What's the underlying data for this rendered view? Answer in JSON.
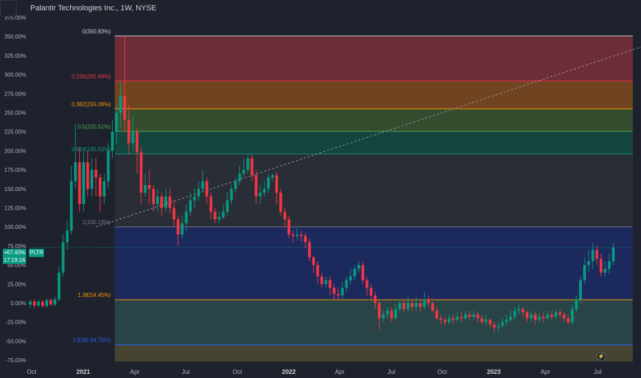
{
  "header": {
    "title": "Palantir Technologies Inc., 1W, NYSE"
  },
  "y_axis": {
    "ticks": [
      "375.00%",
      "350.00%",
      "325.00%",
      "300.00%",
      "275.00%",
      "250.00%",
      "225.00%",
      "200.00%",
      "175.00%",
      "150.00%",
      "125.00%",
      "100.00%",
      "75.00%",
      "50.00%",
      "25.00%",
      "0.00%",
      "-25.00%",
      "-50.00%",
      "-75.00%"
    ]
  },
  "x_axis": {
    "ticks": [
      "Oct",
      "2021",
      "Apr",
      "Jul",
      "Oct",
      "2022",
      "Apr",
      "Jul",
      "Oct",
      "2023",
      "Apr",
      "Jul"
    ]
  },
  "price_label": {
    "change": "+67.40%",
    "countdown": "17:19:16",
    "symbol": "PLTR"
  },
  "colors": {
    "up": "#089981",
    "down": "#f23645",
    "background": "#1e222d",
    "fib_0": "#d1d4dc",
    "fib_0236": "#f23645",
    "fib_0382": "#ff9800",
    "fib_05": "#4caf50",
    "fib_0618": "#089981",
    "fib_1": "#787b86",
    "fib_1382": "#ff9800",
    "fib_1618": "#2962ff"
  },
  "fib_levels": [
    {
      "ratio": "0",
      "label": "0(350.83%)",
      "value": 350.83,
      "color": "#d1d4dc",
      "fill": "#7a2f3c"
    },
    {
      "ratio": "0.236",
      "label": "0.236(291.68%)",
      "value": 291.68,
      "color": "#f23645",
      "fill": "#7f4a1e"
    },
    {
      "ratio": "0.382",
      "label": "0.382(255.09%)",
      "value": 255.09,
      "color": "#ff9800",
      "fill": "#3a5330"
    },
    {
      "ratio": "0.5",
      "label": "0.5(225.51%)",
      "value": 225.51,
      "color": "#4caf50",
      "fill": "#134a42"
    },
    {
      "ratio": "0.618",
      "label": "0.618(195.93%)",
      "value": 195.93,
      "color": "#089981",
      "fill": "#2b3038"
    },
    {
      "ratio": "1",
      "label": "1(100.19%)",
      "value": 100.19,
      "color": "#787b86",
      "fill": "#1c2a66"
    },
    {
      "ratio": "1.382",
      "label": "1.382(4.45%)",
      "value": 4.45,
      "color": "#ff9800",
      "fill": "#2c4a4b"
    },
    {
      "ratio": "1.618",
      "label": "1.618(-54.70%)",
      "value": -54.7,
      "color": "#2962ff",
      "fill": "#4e4a32"
    }
  ],
  "chart_data": {
    "type": "candlestick",
    "title": "Palantir Technologies Inc., 1W, NYSE",
    "y_unit": "% change",
    "ylim": [
      -80,
      380
    ],
    "x_ticks": [
      "Oct",
      "2021",
      "Apr",
      "Jul",
      "Oct",
      "2022",
      "Apr",
      "Jul",
      "Oct",
      "2023",
      "Apr",
      "Jul"
    ],
    "trend_line": {
      "from": {
        "week": 16,
        "value": 100
      },
      "to": {
        "week": 157,
        "value": 351
      }
    },
    "candles": [
      [
        -2,
        2,
        4,
        -6
      ],
      [
        2,
        -3,
        5,
        -7
      ],
      [
        -3,
        2,
        4,
        -5
      ],
      [
        2,
        -4,
        4,
        -6
      ],
      [
        -4,
        4,
        6,
        -6
      ],
      [
        4,
        -2,
        6,
        -4
      ],
      [
        -2,
        5,
        8,
        -4
      ],
      [
        5,
        40,
        48,
        2
      ],
      [
        40,
        80,
        90,
        35
      ],
      [
        80,
        95,
        108,
        70
      ],
      [
        95,
        160,
        180,
        90
      ],
      [
        160,
        185,
        235,
        150
      ],
      [
        185,
        130,
        205,
        120
      ],
      [
        130,
        185,
        200,
        120
      ],
      [
        185,
        150,
        200,
        140
      ],
      [
        150,
        175,
        190,
        140
      ],
      [
        175,
        165,
        190,
        140
      ],
      [
        165,
        140,
        170,
        120
      ],
      [
        140,
        160,
        170,
        130
      ],
      [
        160,
        200,
        210,
        150
      ],
      [
        200,
        225,
        240,
        190
      ],
      [
        225,
        250,
        260,
        210
      ],
      [
        250,
        272,
        290,
        230
      ],
      [
        272,
        240,
        350,
        225
      ],
      [
        240,
        210,
        260,
        195
      ],
      [
        210,
        225,
        245,
        200
      ],
      [
        225,
        198,
        230,
        170
      ],
      [
        198,
        145,
        205,
        130
      ],
      [
        145,
        155,
        170,
        140
      ],
      [
        155,
        150,
        175,
        130
      ],
      [
        150,
        130,
        155,
        120
      ],
      [
        130,
        140,
        150,
        120
      ],
      [
        140,
        125,
        145,
        115
      ],
      [
        125,
        140,
        150,
        120
      ],
      [
        140,
        125,
        150,
        118
      ],
      [
        125,
        110,
        135,
        100
      ],
      [
        110,
        90,
        115,
        75
      ],
      [
        90,
        105,
        115,
        85
      ],
      [
        105,
        120,
        130,
        95
      ],
      [
        120,
        135,
        145,
        115
      ],
      [
        135,
        140,
        150,
        125
      ],
      [
        140,
        150,
        160,
        135
      ],
      [
        150,
        160,
        175,
        145
      ],
      [
        160,
        140,
        165,
        130
      ],
      [
        140,
        120,
        145,
        110
      ],
      [
        120,
        110,
        125,
        105
      ],
      [
        110,
        113,
        120,
        105
      ],
      [
        113,
        120,
        130,
        110
      ],
      [
        120,
        135,
        145,
        115
      ],
      [
        135,
        150,
        155,
        130
      ],
      [
        150,
        160,
        165,
        145
      ],
      [
        160,
        170,
        180,
        155
      ],
      [
        170,
        175,
        190,
        165
      ],
      [
        175,
        190,
        195,
        170
      ],
      [
        190,
        168,
        195,
        160
      ],
      [
        168,
        140,
        175,
        130
      ],
      [
        140,
        145,
        155,
        130
      ],
      [
        145,
        150,
        160,
        140
      ],
      [
        150,
        165,
        170,
        145
      ],
      [
        165,
        168,
        170,
        160
      ],
      [
        168,
        145,
        172,
        130
      ],
      [
        145,
        120,
        150,
        115
      ],
      [
        120,
        110,
        125,
        100
      ],
      [
        110,
        90,
        115,
        85
      ],
      [
        90,
        88,
        95,
        80
      ],
      [
        88,
        90,
        98,
        82
      ],
      [
        90,
        88,
        95,
        80
      ],
      [
        88,
        80,
        92,
        72
      ],
      [
        80,
        60,
        85,
        55
      ],
      [
        60,
        50,
        62,
        40
      ],
      [
        50,
        35,
        55,
        25
      ],
      [
        35,
        25,
        40,
        20
      ],
      [
        25,
        30,
        35,
        20
      ],
      [
        30,
        20,
        35,
        10
      ],
      [
        20,
        12,
        25,
        5
      ],
      [
        12,
        10,
        20,
        3
      ],
      [
        10,
        20,
        28,
        5
      ],
      [
        20,
        30,
        35,
        15
      ],
      [
        30,
        35,
        45,
        25
      ],
      [
        35,
        45,
        50,
        30
      ],
      [
        45,
        50,
        55,
        40
      ],
      [
        50,
        30,
        55,
        25
      ],
      [
        30,
        20,
        35,
        10
      ],
      [
        20,
        10,
        25,
        5
      ],
      [
        10,
        0,
        15,
        -8
      ],
      [
        0,
        -20,
        3,
        -35
      ],
      [
        -20,
        -15,
        -10,
        -25
      ],
      [
        -15,
        -10,
        -5,
        -20
      ],
      [
        -10,
        -20,
        -5,
        -25
      ],
      [
        -20,
        -8,
        -2,
        -22
      ],
      [
        -8,
        0,
        5,
        -12
      ],
      [
        0,
        -8,
        5,
        -12
      ],
      [
        -8,
        0,
        8,
        -12
      ],
      [
        0,
        -5,
        5,
        -10
      ],
      [
        -5,
        0,
        8,
        -10
      ],
      [
        0,
        -5,
        5,
        -12
      ],
      [
        -5,
        5,
        15,
        -8
      ],
      [
        5,
        0,
        10,
        -5
      ],
      [
        0,
        -10,
        2,
        -12
      ],
      [
        -10,
        -20,
        -5,
        -22
      ],
      [
        -20,
        -22,
        -15,
        -28
      ],
      [
        -22,
        -25,
        -18,
        -30
      ],
      [
        -25,
        -20,
        -15,
        -28
      ],
      [
        -20,
        -22,
        -15,
        -28
      ],
      [
        -22,
        -18,
        -12,
        -25
      ],
      [
        -18,
        -20,
        -12,
        -25
      ],
      [
        -20,
        -15,
        -10,
        -22
      ],
      [
        -15,
        -18,
        -10,
        -22
      ],
      [
        -18,
        -15,
        -10,
        -22
      ],
      [
        -15,
        -20,
        -12,
        -25
      ],
      [
        -20,
        -25,
        -15,
        -28
      ],
      [
        -25,
        -22,
        -15,
        -30
      ],
      [
        -22,
        -28,
        -20,
        -32
      ],
      [
        -28,
        -32,
        -25,
        -38
      ],
      [
        -32,
        -30,
        -25,
        -38
      ],
      [
        -30,
        -25,
        -20,
        -32
      ],
      [
        -25,
        -22,
        -15,
        -30
      ],
      [
        -22,
        -18,
        -10,
        -25
      ],
      [
        -18,
        -10,
        -5,
        -22
      ],
      [
        -10,
        -8,
        -2,
        -15
      ],
      [
        -8,
        -12,
        -5,
        -18
      ],
      [
        -12,
        -20,
        -10,
        -25
      ],
      [
        -20,
        -15,
        -10,
        -25
      ],
      [
        -15,
        -22,
        -12,
        -28
      ],
      [
        -22,
        -18,
        -12,
        -25
      ],
      [
        -18,
        -20,
        -12,
        -25
      ],
      [
        -20,
        -15,
        -10,
        -22
      ],
      [
        -15,
        -18,
        -10,
        -22
      ],
      [
        -18,
        -12,
        -8,
        -22
      ],
      [
        -12,
        -15,
        -8,
        -20
      ],
      [
        -15,
        -20,
        -12,
        -25
      ],
      [
        -20,
        -25,
        -15,
        -28
      ],
      [
        -25,
        -8,
        -2,
        -28
      ],
      [
        -8,
        5,
        10,
        -12
      ],
      [
        5,
        30,
        35,
        0
      ],
      [
        30,
        50,
        60,
        25
      ],
      [
        50,
        55,
        70,
        40
      ],
      [
        55,
        70,
        78,
        45
      ],
      [
        70,
        58,
        75,
        50
      ],
      [
        58,
        40,
        65,
        35
      ],
      [
        40,
        45,
        55,
        35
      ],
      [
        45,
        55,
        65,
        38
      ],
      [
        55,
        73,
        78,
        50
      ]
    ]
  }
}
